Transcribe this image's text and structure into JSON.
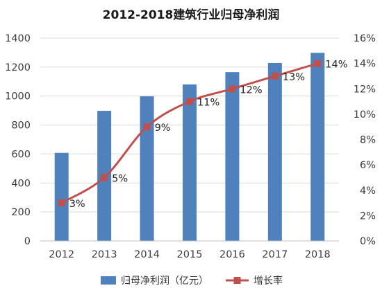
{
  "chart_data": {
    "type": "bar",
    "title": "2012-2018建筑行业归母净利润",
    "categories": [
      "2012",
      "2013",
      "2014",
      "2015",
      "2016",
      "2017",
      "2018"
    ],
    "series": [
      {
        "name": "归母净利润（亿元）",
        "type": "bar",
        "axis": "left",
        "color": "#4f81bd",
        "values": [
          608,
          898,
          998,
          1080,
          1165,
          1228,
          1298
        ]
      },
      {
        "name": "增长率",
        "type": "line",
        "axis": "right",
        "color": "#c0504d",
        "values": [
          3,
          5,
          9,
          11,
          12,
          13,
          14
        ],
        "labels": [
          "3%",
          "5%",
          "9%",
          "11%",
          "12%",
          "13%",
          "14%"
        ]
      }
    ],
    "y_left": {
      "min": 0,
      "max": 1400,
      "ticks": [
        "0",
        "200",
        "400",
        "600",
        "800",
        "1000",
        "1200",
        "1400"
      ]
    },
    "y_right": {
      "min": 0,
      "max": 16,
      "ticks": [
        "0%",
        "2%",
        "4%",
        "6%",
        "8%",
        "10%",
        "12%",
        "14%",
        "16%"
      ]
    },
    "grid": "horizontal",
    "legend_position": "bottom"
  }
}
